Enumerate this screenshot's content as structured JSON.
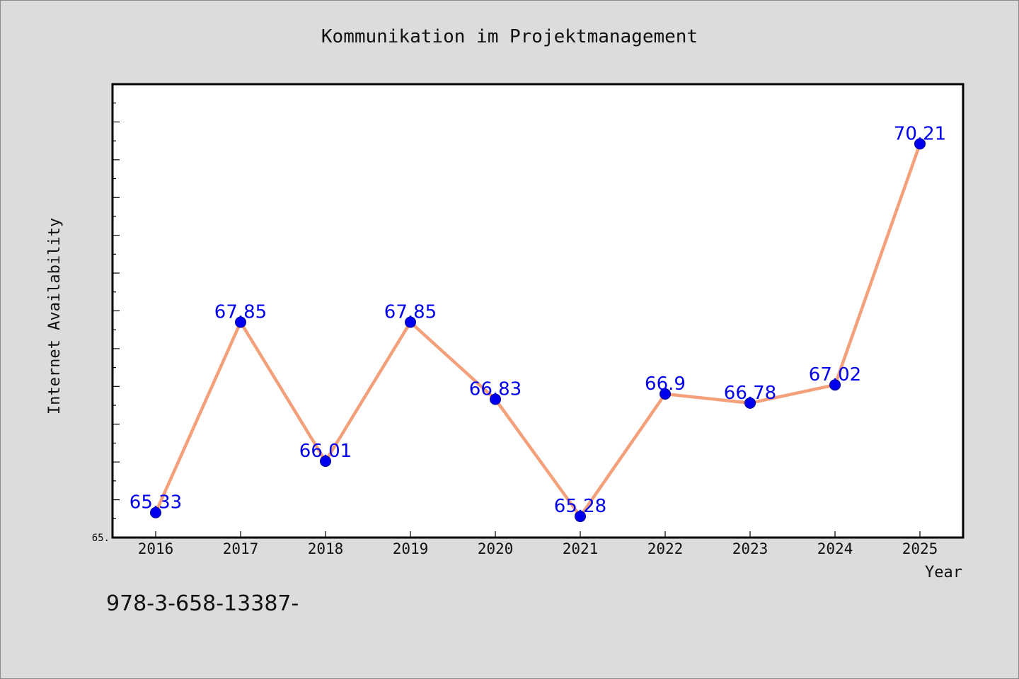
{
  "colors": {
    "background": "#dcdcdc",
    "plot_background": "#ffffff",
    "line": "#f4a07a",
    "marker": "#0000ee",
    "data_label": "#0000ee",
    "axis": "#000000"
  },
  "footnote": "978-3-658-13387-",
  "chart_data": {
    "type": "line",
    "title": "Kommunikation im Projektmanagement",
    "xlabel": "Year",
    "ylabel": "Internet Availability",
    "x": [
      "2016",
      "2017",
      "2018",
      "2019",
      "2020",
      "2021",
      "2022",
      "2023",
      "2024",
      "2025"
    ],
    "series": [
      {
        "values": [
          65.33,
          67.85,
          66.01,
          67.85,
          66.83,
          65.28,
          66.9,
          66.78,
          67.02,
          70.21
        ],
        "labels": [
          "65.33",
          "67.85",
          "66.01",
          "67.85",
          "66.83",
          "65.28",
          "66.9",
          "66.78",
          "67.02",
          "70.21"
        ]
      }
    ],
    "ylim": [
      65.0,
      71.0
    ],
    "yticks": [
      65.0
    ],
    "ytick_labels": [
      "65."
    ],
    "grid": false,
    "legend": "none"
  }
}
